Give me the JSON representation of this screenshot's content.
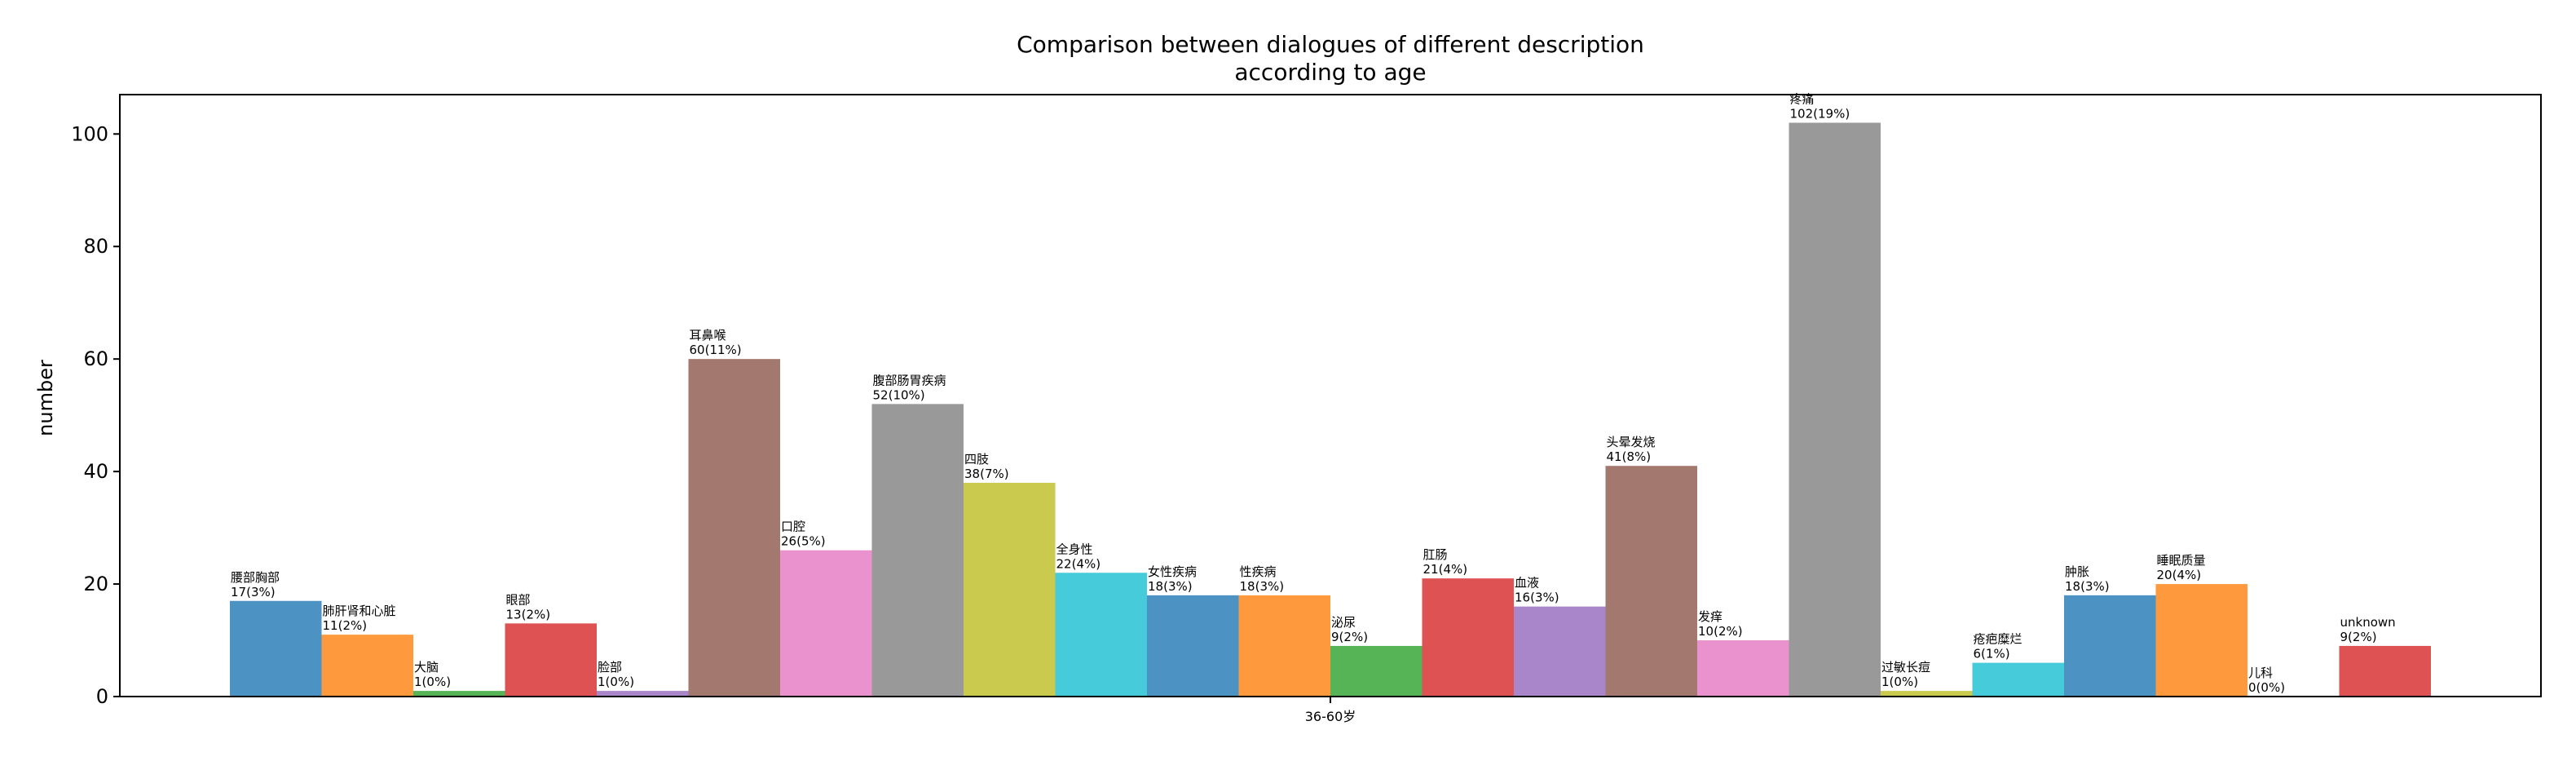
{
  "chart_data": {
    "type": "bar",
    "title_line1": "Comparison between dialogues of different description",
    "title_line2": "according to age",
    "xlabel": "",
    "ylabel": "number",
    "categories": [
      "36-60岁"
    ],
    "ylim": [
      0,
      107
    ],
    "yticks": [
      0,
      20,
      40,
      60,
      80,
      100
    ],
    "grid": false,
    "series": [
      {
        "name": "腰部胸部",
        "value": 17,
        "label": "17(3%)",
        "color": "#1f77b4"
      },
      {
        "name": "肺肝肾和心脏",
        "value": 11,
        "label": "11(2%)",
        "color": "#ff7f0e"
      },
      {
        "name": "大脑",
        "value": 1,
        "label": "1(0%)",
        "color": "#2ca02c"
      },
      {
        "name": "眼部",
        "value": 13,
        "label": "13(2%)",
        "color": "#d62728"
      },
      {
        "name": "脸部",
        "value": 1,
        "label": "1(0%)",
        "color": "#9467bd"
      },
      {
        "name": "耳鼻喉",
        "value": 60,
        "label": "60(11%)",
        "color": "#8c564b"
      },
      {
        "name": "口腔",
        "value": 26,
        "label": "26(5%)",
        "color": "#e377c2"
      },
      {
        "name": "腹部肠胃疾病",
        "value": 52,
        "label": "52(10%)",
        "color": "#7f7f7f"
      },
      {
        "name": "四肢",
        "value": 38,
        "label": "38(7%)",
        "color": "#bcbd22"
      },
      {
        "name": "全身性",
        "value": 22,
        "label": "22(4%)",
        "color": "#17becf"
      },
      {
        "name": "女性疾病",
        "value": 18,
        "label": "18(3%)",
        "color": "#1f77b4"
      },
      {
        "name": "性疾病",
        "value": 18,
        "label": "18(3%)",
        "color": "#ff7f0e"
      },
      {
        "name": "泌尿",
        "value": 9,
        "label": "9(2%)",
        "color": "#2ca02c"
      },
      {
        "name": "肛肠",
        "value": 21,
        "label": "21(4%)",
        "color": "#d62728"
      },
      {
        "name": "血液",
        "value": 16,
        "label": "16(3%)",
        "color": "#9467bd"
      },
      {
        "name": "头晕发烧",
        "value": 41,
        "label": "41(8%)",
        "color": "#8c564b"
      },
      {
        "name": "发痒",
        "value": 10,
        "label": "10(2%)",
        "color": "#e377c2"
      },
      {
        "name": "疼痛",
        "value": 102,
        "label": "102(19%)",
        "color": "#7f7f7f"
      },
      {
        "name": "过敏长痘",
        "value": 1,
        "label": "1(0%)",
        "color": "#bcbd22"
      },
      {
        "name": "疮疤糜烂",
        "value": 6,
        "label": "6(1%)",
        "color": "#17becf"
      },
      {
        "name": "肿胀",
        "value": 18,
        "label": "18(3%)",
        "color": "#1f77b4"
      },
      {
        "name": "睡眠质量",
        "value": 20,
        "label": "20(4%)",
        "color": "#ff7f0e"
      },
      {
        "name": "儿科",
        "value": 0,
        "label": "0(0%)",
        "color": "#2ca02c"
      },
      {
        "name": "unknown",
        "value": 9,
        "label": "9(2%)",
        "color": "#d62728"
      }
    ]
  }
}
